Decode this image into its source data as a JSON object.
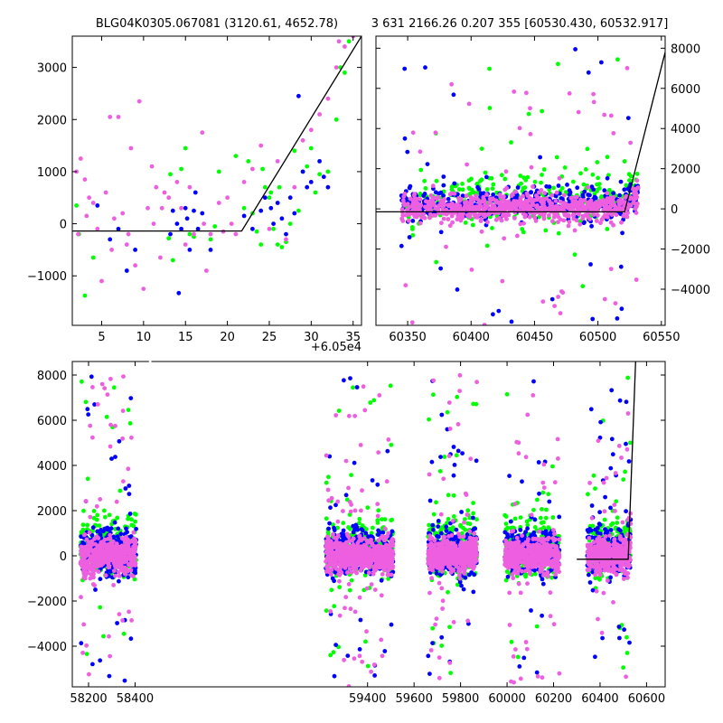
{
  "figure": {
    "title_left": "BLG04K0305.067081 (3120.61, 4652.78)",
    "title_right": "3 631 2166.26 0.207 355 [60530.430, 60532.917]",
    "offset_label": "+6.05e4"
  },
  "colors": {
    "green": "#00ff00",
    "blue": "#0000ff",
    "pink": "#ee5fe0",
    "model": "#000000"
  },
  "chart_data": [
    {
      "id": "top-left",
      "type": "scatter",
      "xlim": [
        1.5,
        36
      ],
      "ylim": [
        -1950,
        3600
      ],
      "xticks": [
        5,
        10,
        15,
        20,
        25,
        30,
        35
      ],
      "xtick_labels": [
        "5",
        "10",
        "15",
        "20",
        "25",
        "30",
        "35"
      ],
      "yticks": [
        -1000,
        0,
        1000,
        2000,
        3000
      ],
      "ytick_labels": [
        "−1000",
        "0",
        "1000",
        "2000",
        "3000"
      ],
      "x_offset": 60500,
      "model_line": [
        [
          1.5,
          -140
        ],
        [
          21.7,
          -140
        ],
        [
          36,
          3600
        ]
      ],
      "series": [
        {
          "color": "green",
          "points": [
            [
              2,
              350
            ],
            [
              2.3,
              -200
            ],
            [
              3,
              -1380
            ],
            [
              4,
              -650
            ],
            [
              13,
              -280
            ],
            [
              13.2,
              950
            ],
            [
              13.5,
              -700
            ],
            [
              14.5,
              1050
            ],
            [
              15,
              1450
            ],
            [
              15.5,
              -200
            ],
            [
              16,
              -250
            ],
            [
              18,
              -300
            ],
            [
              18.5,
              -50
            ],
            [
              19,
              1000
            ],
            [
              21,
              1300
            ],
            [
              22.5,
              1200
            ],
            [
              23,
              200
            ],
            [
              23.5,
              -150
            ],
            [
              24,
              -400
            ],
            [
              24.5,
              700
            ],
            [
              25,
              500
            ],
            [
              25.5,
              -100
            ],
            [
              26,
              -400
            ],
            [
              26.5,
              -450
            ],
            [
              27,
              -350
            ],
            [
              27.5,
              0
            ],
            [
              28,
              1400
            ],
            [
              28.5,
              250
            ],
            [
              29,
              1000
            ],
            [
              29.5,
              1100
            ],
            [
              30,
              1450
            ],
            [
              30.5,
              600
            ],
            [
              31,
              950
            ],
            [
              32,
              1000
            ],
            [
              33,
              2000
            ],
            [
              33.5,
              3000
            ],
            [
              34,
              2900
            ],
            [
              34.5,
              3500
            ],
            [
              24.2,
              1050
            ],
            [
              22,
              300
            ],
            [
              25.2,
              600
            ],
            [
              26.2,
              700
            ]
          ]
        },
        {
          "color": "blue",
          "points": [
            [
              4.5,
              350
            ],
            [
              6,
              -300
            ],
            [
              7,
              -100
            ],
            [
              8,
              -900
            ],
            [
              9,
              -500
            ],
            [
              13.5,
              250
            ],
            [
              14,
              0
            ],
            [
              14.5,
              -100
            ],
            [
              15,
              300
            ],
            [
              15.5,
              -500
            ],
            [
              14.2,
              -1330
            ],
            [
              16,
              250
            ],
            [
              16.5,
              -100
            ],
            [
              17,
              200
            ],
            [
              18,
              -500
            ],
            [
              22,
              150
            ],
            [
              23,
              -100
            ],
            [
              24,
              250
            ],
            [
              24.5,
              500
            ],
            [
              25.5,
              0
            ],
            [
              26,
              400
            ],
            [
              27,
              -200
            ],
            [
              27.5,
              500
            ],
            [
              28,
              200
            ],
            [
              28.5,
              2450
            ],
            [
              29,
              1000
            ],
            [
              29.5,
              700
            ],
            [
              30,
              800
            ],
            [
              31,
              1200
            ],
            [
              31.5,
              900
            ],
            [
              32,
              700
            ],
            [
              13.2,
              -200
            ],
            [
              15.2,
              100
            ],
            [
              16.2,
              600
            ],
            [
              25.2,
              300
            ],
            [
              26.5,
              100
            ]
          ]
        },
        {
          "color": "pink",
          "points": [
            [
              2,
              1000
            ],
            [
              2.2,
              -200
            ],
            [
              2.5,
              1250
            ],
            [
              3,
              850
            ],
            [
              3.5,
              500
            ],
            [
              4,
              400
            ],
            [
              4.5,
              -100
            ],
            [
              5,
              -1100
            ],
            [
              5.5,
              600
            ],
            [
              6,
              2050
            ],
            [
              6.5,
              100
            ],
            [
              7,
              2050
            ],
            [
              7.5,
              200
            ],
            [
              8,
              -400
            ],
            [
              8.5,
              1450
            ],
            [
              9,
              -800
            ],
            [
              9.5,
              2350
            ],
            [
              10,
              -1250
            ],
            [
              10.5,
              300
            ],
            [
              11,
              1100
            ],
            [
              11.5,
              700
            ],
            [
              12,
              -650
            ],
            [
              12.5,
              600
            ],
            [
              13,
              500
            ],
            [
              14,
              800
            ],
            [
              14.5,
              300
            ],
            [
              15,
              -400
            ],
            [
              16,
              -200
            ],
            [
              17,
              1750
            ],
            [
              17.5,
              -900
            ],
            [
              18,
              -200
            ],
            [
              19,
              400
            ],
            [
              20,
              500
            ],
            [
              21,
              -200
            ],
            [
              22,
              800
            ],
            [
              23,
              1050
            ],
            [
              24,
              1500
            ],
            [
              25,
              -100
            ],
            [
              26,
              1200
            ],
            [
              27,
              -300
            ],
            [
              28,
              700
            ],
            [
              29,
              1600
            ],
            [
              30,
              1800
            ],
            [
              31,
              2100
            ],
            [
              32,
              2400
            ],
            [
              33,
              3000
            ],
            [
              33.3,
              3500
            ],
            [
              34,
              3400
            ],
            [
              35,
              3600
            ],
            [
              3.2,
              150
            ],
            [
              6.2,
              -500
            ],
            [
              8.2,
              -200
            ],
            [
              11.2,
              0
            ],
            [
              12.2,
              300
            ],
            [
              15.5,
              700
            ],
            [
              17.2,
              0
            ],
            [
              19.5,
              -150
            ],
            [
              20.5,
              0
            ]
          ]
        }
      ]
    },
    {
      "id": "top-right",
      "type": "scatter",
      "xlim": [
        60325,
        60553
      ],
      "ylim": [
        -5800,
        8600
      ],
      "xticks": [
        60350,
        60400,
        60450,
        60500,
        60550
      ],
      "xtick_labels": [
        "60350",
        "60400",
        "60450",
        "60500",
        "60550"
      ],
      "yticks": [
        -4000,
        -2000,
        0,
        2000,
        4000,
        6000,
        8000
      ],
      "ytick_labels": [
        "−4000",
        "−2000",
        "0",
        "2000",
        "4000",
        "6000",
        "8000"
      ],
      "model_line": [
        [
          60325,
          -150
        ],
        [
          60521,
          -150
        ],
        [
          60553,
          7800
        ]
      ],
      "scatter_gen": {
        "ranges": [
          [
            60345,
            60532
          ]
        ],
        "center": 50,
        "core_sd": 320,
        "bright_end": 60520,
        "counts": {
          "pink": 700,
          "blue": 420,
          "green": 300
        },
        "outlier_frac": 0.07,
        "outlier_range": [
          -5800,
          8000
        ],
        "seed": 7
      }
    },
    {
      "id": "bottom",
      "type": "scatter",
      "xlim": [
        58130,
        60680
      ],
      "ylim": [
        -5800,
        8600
      ],
      "xticks": [
        58200,
        58400,
        59400,
        59600,
        59800,
        60000,
        60200,
        60400,
        60600
      ],
      "xtick_labels": [
        "58200",
        "58400",
        "59400",
        "59600",
        "59800",
        "60000",
        "60200",
        "60400",
        "60600"
      ],
      "yticks": [
        -4000,
        -2000,
        0,
        2000,
        4000,
        6000,
        8000
      ],
      "ytick_labels": [
        "−4000",
        "−2000",
        "0",
        "2000",
        "4000",
        "6000",
        "8000"
      ],
      "model_line": [
        [
          60300,
          -150
        ],
        [
          60521,
          -150
        ],
        [
          60553,
          8600
        ]
      ],
      "scatter_gen": {
        "ranges": [
          [
            58165,
            58405
          ],
          [
            59220,
            59510
          ],
          [
            59660,
            59870
          ],
          [
            59990,
            60225
          ],
          [
            60345,
            60532
          ]
        ],
        "center": 0,
        "core_sd": 380,
        "bright_end": 60520,
        "counts": {
          "pink": 2600,
          "blue": 1500,
          "green": 1100
        },
        "outlier_frac": 0.08,
        "outlier_range": [
          -5800,
          8000
        ],
        "seed": 13
      }
    }
  ]
}
